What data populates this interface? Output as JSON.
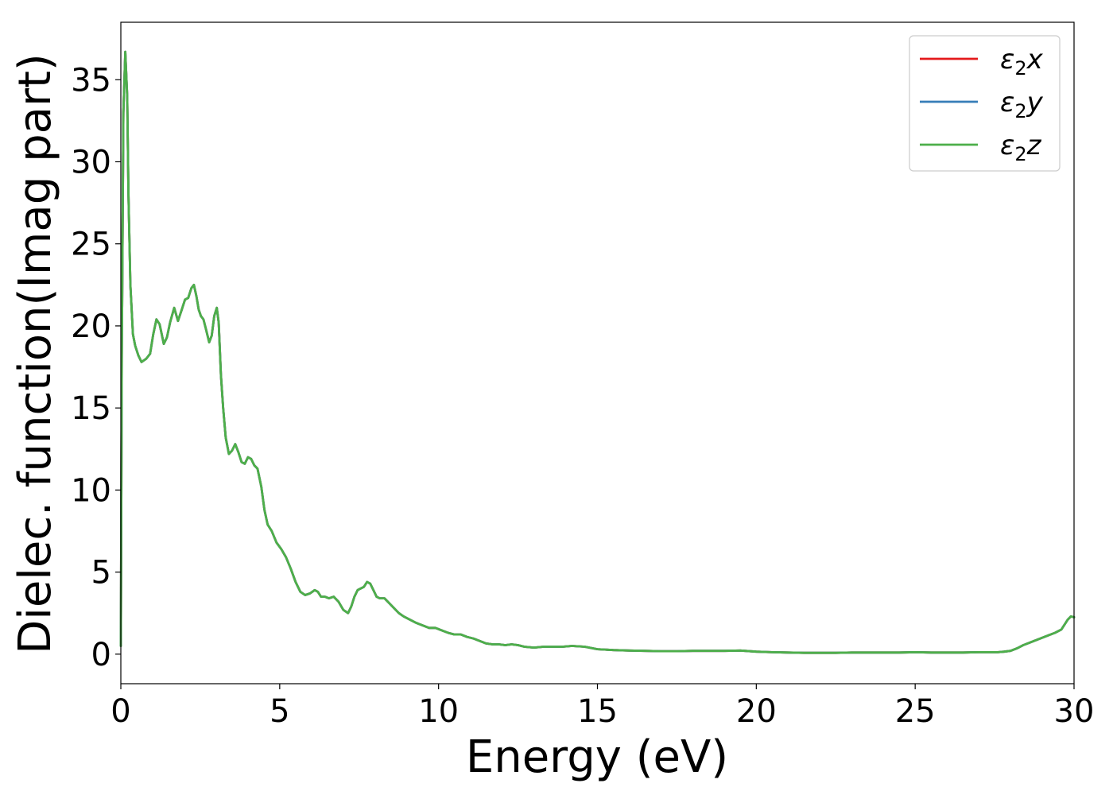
{
  "chart_data": {
    "type": "line",
    "xlabel": "Energy (eV)",
    "ylabel": "Dielec. function(Imag part)",
    "xlim": [
      0,
      30
    ],
    "ylim": [
      -1.8,
      38.5
    ],
    "xticks": [
      0,
      5,
      10,
      15,
      20,
      25,
      30
    ],
    "yticks": [
      0,
      5,
      10,
      15,
      20,
      25,
      30,
      35
    ],
    "grid": false,
    "legend_position": "top-right",
    "series": [
      {
        "name": "ε2x",
        "legend_main": "ε",
        "legend_sub": "2",
        "legend_tail": "x",
        "color": "#e41a1c"
      },
      {
        "name": "ε2y",
        "legend_main": "ε",
        "legend_sub": "2",
        "legend_tail": "y",
        "color": "#377eb8"
      },
      {
        "name": "ε2z",
        "legend_main": "ε",
        "legend_sub": "2",
        "legend_tail": "z",
        "color": "#4daf4a"
      }
    ],
    "curve": {
      "x": [
        0,
        0.03,
        0.08,
        0.14,
        0.2,
        0.24,
        0.3,
        0.38,
        0.45,
        0.55,
        0.65,
        0.8,
        0.92,
        1.02,
        1.12,
        1.22,
        1.35,
        1.45,
        1.55,
        1.68,
        1.8,
        1.92,
        2.02,
        2.12,
        2.22,
        2.3,
        2.38,
        2.45,
        2.52,
        2.6,
        2.68,
        2.78,
        2.86,
        2.94,
        3.02,
        3.08,
        3.15,
        3.22,
        3.3,
        3.4,
        3.5,
        3.6,
        3.7,
        3.8,
        3.9,
        4.0,
        4.1,
        4.2,
        4.3,
        4.42,
        4.52,
        4.62,
        4.75,
        4.9,
        5.05,
        5.2,
        5.35,
        5.5,
        5.65,
        5.8,
        5.95,
        6.1,
        6.2,
        6.3,
        6.42,
        6.55,
        6.7,
        6.85,
        7.0,
        7.15,
        7.25,
        7.35,
        7.45,
        7.55,
        7.65,
        7.75,
        7.85,
        7.95,
        8.05,
        8.15,
        8.3,
        8.45,
        8.6,
        8.75,
        8.9,
        9.1,
        9.3,
        9.5,
        9.7,
        9.9,
        10.1,
        10.3,
        10.5,
        10.7,
        10.9,
        11.1,
        11.3,
        11.5,
        11.7,
        11.9,
        12.1,
        12.3,
        12.5,
        12.7,
        13.0,
        13.3,
        13.6,
        13.9,
        14.2,
        14.6,
        15.0,
        15.5,
        16.0,
        16.5,
        17.0,
        17.5,
        18.0,
        18.5,
        19.0,
        19.5,
        20.0,
        20.5,
        21.0,
        21.5,
        22.0,
        22.5,
        23.0,
        23.5,
        24.0,
        24.5,
        25.0,
        25.5,
        26.0,
        26.5,
        27.0,
        27.3,
        27.6,
        27.8,
        28.0,
        28.2,
        28.4,
        28.6,
        28.8,
        29.0,
        29.2,
        29.4,
        29.6,
        29.7,
        29.8,
        29.9,
        30.0
      ],
      "y": [
        0.5,
        18.0,
        33.0,
        36.7,
        34.0,
        28.0,
        22.5,
        19.5,
        18.8,
        18.2,
        17.8,
        18.0,
        18.3,
        19.5,
        20.4,
        20.1,
        18.9,
        19.3,
        20.2,
        21.1,
        20.3,
        21.0,
        21.6,
        21.7,
        22.3,
        22.5,
        21.8,
        21.0,
        20.6,
        20.4,
        19.8,
        19.0,
        19.4,
        20.6,
        21.1,
        20.2,
        17.0,
        15.0,
        13.2,
        12.2,
        12.4,
        12.8,
        12.3,
        11.7,
        11.6,
        12.0,
        11.9,
        11.5,
        11.3,
        10.2,
        8.8,
        7.9,
        7.5,
        6.8,
        6.4,
        5.9,
        5.2,
        4.4,
        3.8,
        3.6,
        3.7,
        3.9,
        3.8,
        3.5,
        3.5,
        3.4,
        3.5,
        3.2,
        2.7,
        2.5,
        2.9,
        3.5,
        3.9,
        4.0,
        4.1,
        4.4,
        4.3,
        3.9,
        3.5,
        3.4,
        3.4,
        3.1,
        2.8,
        2.5,
        2.3,
        2.1,
        1.9,
        1.75,
        1.6,
        1.6,
        1.45,
        1.3,
        1.2,
        1.2,
        1.05,
        0.95,
        0.8,
        0.65,
        0.6,
        0.6,
        0.55,
        0.6,
        0.55,
        0.45,
        0.4,
        0.45,
        0.45,
        0.45,
        0.5,
        0.45,
        0.3,
        0.25,
        0.22,
        0.2,
        0.18,
        0.18,
        0.2,
        0.2,
        0.2,
        0.22,
        0.15,
        0.12,
        0.1,
        0.08,
        0.08,
        0.08,
        0.1,
        0.1,
        0.1,
        0.1,
        0.12,
        0.1,
        0.1,
        0.1,
        0.12,
        0.12,
        0.12,
        0.15,
        0.2,
        0.35,
        0.55,
        0.7,
        0.85,
        1.0,
        1.15,
        1.3,
        1.5,
        1.8,
        2.1,
        2.3,
        2.25
      ]
    }
  }
}
